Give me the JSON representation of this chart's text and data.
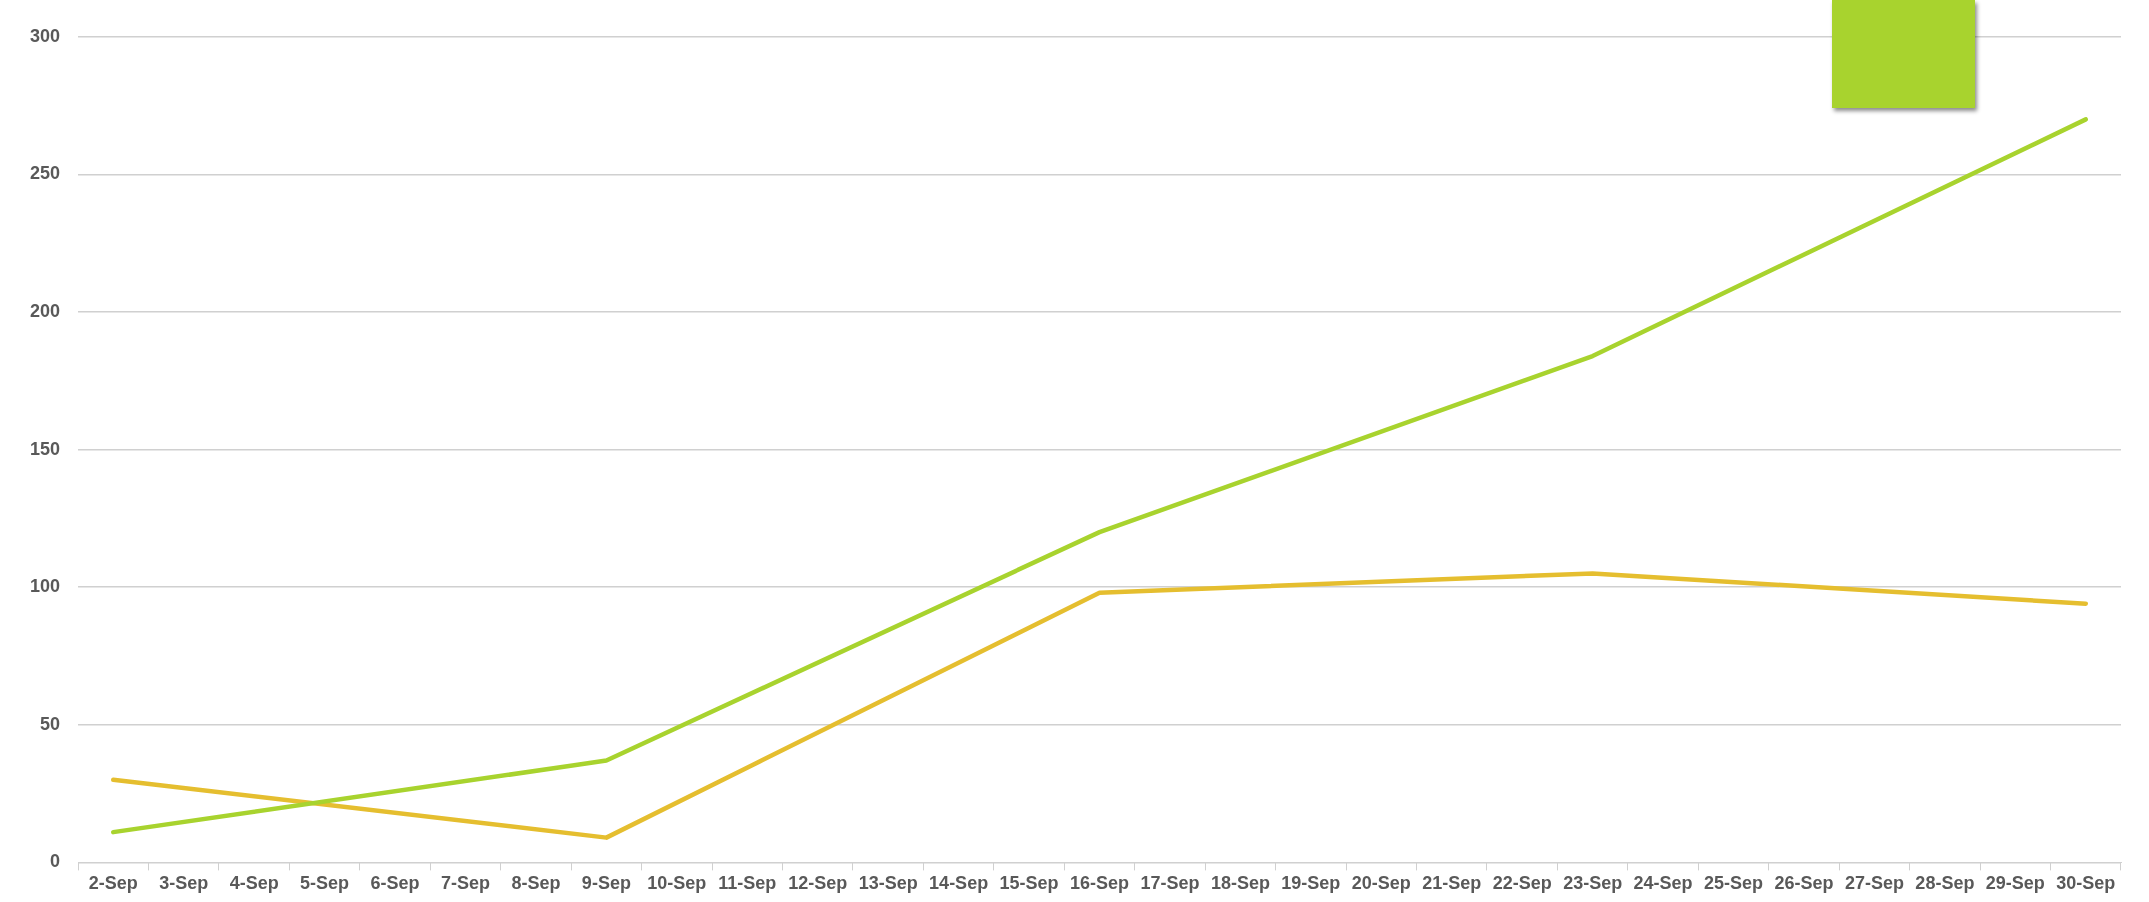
{
  "chart_data": {
    "type": "line",
    "categories": [
      "2-Sep",
      "3-Sep",
      "4-Sep",
      "5-Sep",
      "6-Sep",
      "7-Sep",
      "8-Sep",
      "9-Sep",
      "10-Sep",
      "11-Sep",
      "12-Sep",
      "13-Sep",
      "14-Sep",
      "15-Sep",
      "16-Sep",
      "17-Sep",
      "18-Sep",
      "19-Sep",
      "20-Sep",
      "21-Sep",
      "22-Sep",
      "23-Sep",
      "24-Sep",
      "25-Sep",
      "26-Sep",
      "27-Sep",
      "28-Sep",
      "29-Sep",
      "30-Sep"
    ],
    "series": [
      {
        "color": "#a8d32e",
        "values": [
          11,
          null,
          null,
          null,
          null,
          null,
          null,
          37,
          null,
          null,
          null,
          null,
          null,
          null,
          120,
          null,
          null,
          null,
          null,
          null,
          null,
          184,
          null,
          null,
          null,
          null,
          null,
          null,
          270
        ]
      },
      {
        "color": "#e5be2f",
        "values": [
          30,
          null,
          null,
          null,
          null,
          null,
          null,
          9,
          null,
          null,
          null,
          null,
          null,
          null,
          98,
          null,
          null,
          null,
          null,
          null,
          null,
          105,
          null,
          null,
          null,
          null,
          null,
          null,
          94
        ]
      }
    ],
    "ylim": [
      0,
      300
    ],
    "yticks": [
      0,
      50,
      100,
      150,
      200,
      250,
      300
    ],
    "grid": "y",
    "legend": false,
    "marker": "none",
    "line_style": "solid"
  }
}
